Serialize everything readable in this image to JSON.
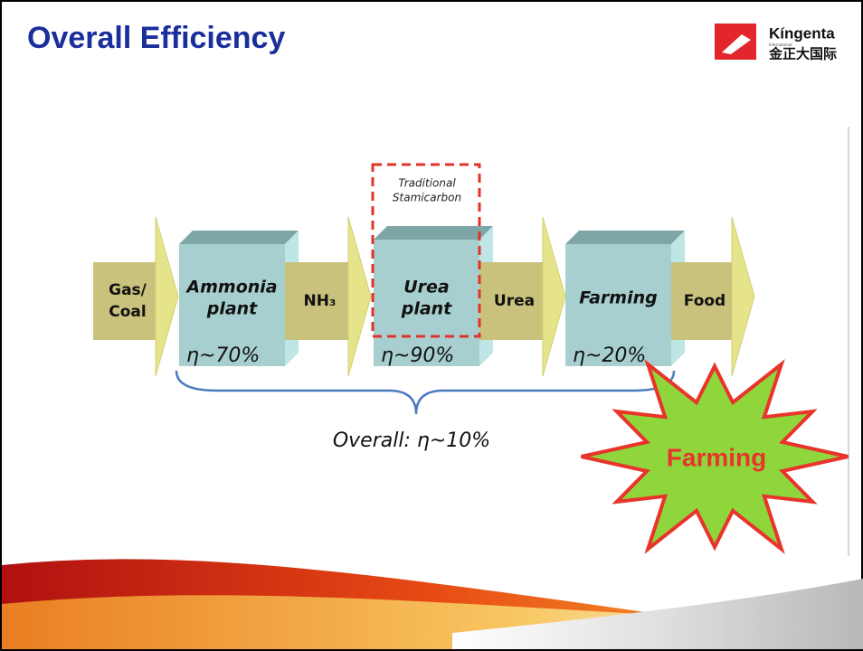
{
  "header": {
    "title": "Overall Efficiency",
    "logo": {
      "name": "Kíngenta",
      "subname": "International",
      "chinese": "金正大国际"
    }
  },
  "flow": [
    {
      "kind": "arrow",
      "lines": [
        "Gas/",
        "Coal"
      ]
    },
    {
      "kind": "plant",
      "lines": [
        "Ammonia",
        "plant"
      ],
      "efficiency": "η~70%"
    },
    {
      "kind": "arrow",
      "lines": [
        "NH₃"
      ]
    },
    {
      "kind": "plant",
      "lines": [
        "Urea",
        "plant"
      ],
      "efficiency": "η~90%"
    },
    {
      "kind": "arrow",
      "lines": [
        "Urea"
      ]
    },
    {
      "kind": "plant",
      "lines": [
        "Farming"
      ],
      "efficiency": "η~20%"
    },
    {
      "kind": "arrow",
      "lines": [
        "Food"
      ]
    }
  ],
  "highlight": {
    "lines": [
      "Traditional",
      "Stamicarbon"
    ]
  },
  "overall": "Overall: η~10%",
  "burst": "Farming"
}
